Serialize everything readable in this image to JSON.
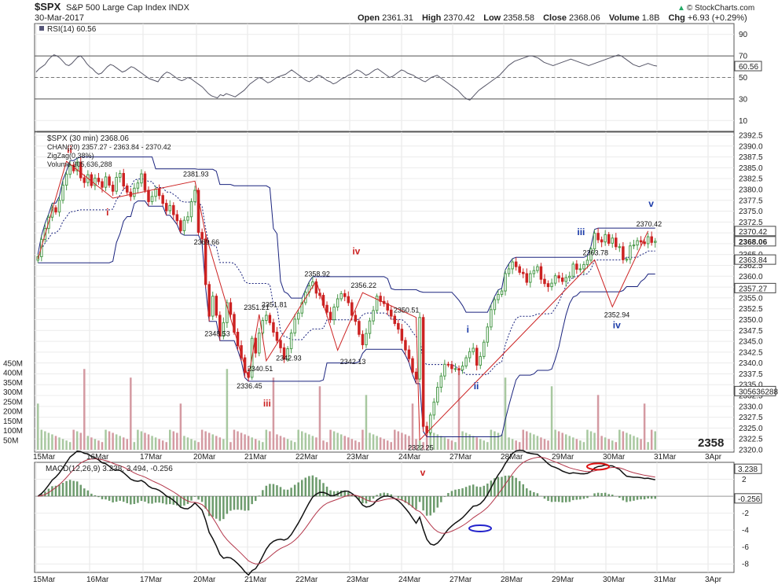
{
  "header": {
    "symbol": "$SPX",
    "name": "S&P 500 Large Cap Index",
    "exchange": "INDX",
    "date": "30-Mar-2017",
    "open_label": "Open",
    "open": "2361.31",
    "high_label": "High",
    "high": "2370.42",
    "low_label": "Low",
    "low": "2358.58",
    "close_label": "Close",
    "close": "2368.06",
    "volume_label": "Volume",
    "volume": "1.8B",
    "chg_label": "Chg",
    "chg": "+6.93 (+0.29%)",
    "credit": "© StockCharts.com",
    "credit_arrow": "▲"
  },
  "colors": {
    "up": "#4a9a4a",
    "down": "#cc2222",
    "zigzag": "#cc2222",
    "channel": "#1a237e",
    "wave_blue": "#1a3aa8",
    "wave_red": "#cc2222",
    "ma": "#b3364a",
    "macd_line": "#111111",
    "hist": "#3c7a3c",
    "vol_up": "#a8c8a0",
    "vol_down": "#d49aa2",
    "price_box": "#1f8f1f"
  },
  "chart_data": [
    {
      "type": "line",
      "panel": "rsi",
      "title": "RSI(14) 60.56",
      "value": 60.56,
      "ylim": [
        0,
        100
      ],
      "ticks": [
        "90",
        "70",
        "50",
        "30",
        "10"
      ],
      "levels": [
        70,
        50,
        30
      ],
      "values": [
        55,
        58,
        60,
        62,
        66,
        69,
        71,
        70,
        68,
        65,
        62,
        61,
        63,
        66,
        69,
        70,
        67,
        63,
        60,
        58,
        55,
        53,
        54,
        57,
        60,
        62,
        61,
        59,
        57,
        55,
        56,
        58,
        60,
        59,
        57,
        55,
        53,
        51,
        49,
        48,
        47,
        46,
        50,
        53,
        55,
        54,
        52,
        50,
        48,
        47,
        48,
        50,
        49,
        47,
        45,
        43,
        41,
        38,
        35,
        33,
        32,
        31,
        34,
        33,
        35,
        34,
        33,
        32,
        34,
        36,
        38,
        41,
        44,
        46,
        48,
        50,
        49,
        47,
        45,
        46,
        48,
        50,
        51,
        52,
        53,
        55,
        57,
        55,
        53,
        51,
        49,
        47,
        46,
        48,
        50,
        52,
        51,
        49,
        47,
        46,
        44,
        45,
        47,
        49,
        50,
        52,
        53,
        55,
        57,
        56,
        54,
        52,
        53,
        55,
        57,
        58,
        56,
        54,
        52,
        50,
        51,
        53,
        55,
        57,
        56,
        54,
        53,
        52,
        50,
        49,
        47,
        46,
        48,
        50,
        51,
        52,
        50,
        48,
        46,
        44,
        42,
        40,
        38,
        35,
        32,
        30,
        29,
        32,
        35,
        38,
        40,
        42,
        44,
        46,
        48,
        50,
        52,
        55,
        58,
        61,
        63,
        65,
        66,
        67,
        68,
        69,
        70,
        70,
        69,
        68,
        66,
        64,
        63,
        62,
        61,
        62,
        63,
        64,
        65,
        66,
        67,
        66,
        65,
        64,
        63,
        62,
        61,
        62,
        63,
        64,
        65,
        66,
        67,
        68,
        69,
        70,
        71,
        70,
        68,
        66,
        64,
        62,
        61,
        60,
        61,
        62,
        63,
        62,
        61,
        60.56
      ]
    },
    {
      "type": "candlestick",
      "panel": "price",
      "title": "$SPX (30 min) 2368.06",
      "legend": [
        "CHAN(20) 2357.27 - 2363.84 - 2370.42",
        "ZigZag(0.38%)",
        "Volume 305,636,288"
      ],
      "ylim": [
        2320,
        2392.5
      ],
      "ticks": [
        "2392.5",
        "2390.0",
        "2387.5",
        "2385.0",
        "2382.5",
        "2380.0",
        "2377.5",
        "2375.0",
        "2372.5",
        "2370.0",
        "2367.5",
        "2365.0",
        "2362.5",
        "2360.0",
        "2357.5",
        "2355.0",
        "2352.5",
        "2350.0",
        "2347.5",
        "2345.0",
        "2342.5",
        "2340.0",
        "2337.5",
        "2335.0",
        "2332.5",
        "2330.0",
        "2327.5",
        "2325.0",
        "2322.5",
        "2320.0"
      ],
      "price_tags": [
        "2370.42",
        "2368.06",
        "2363.84",
        "2357.27",
        "305636288"
      ],
      "last_price": "2358",
      "close": [
        2364.5,
        2368.5,
        2371.0,
        2373.6,
        2375.8,
        2374.8,
        2377.5,
        2381.0,
        2383.5,
        2385.6,
        2384.3,
        2386.3,
        2382.7,
        2381.6,
        2383.4,
        2380.9,
        2382.6,
        2381.8,
        2380.5,
        2382.9,
        2381.0,
        2379.6,
        2382.8,
        2383.7,
        2380.8,
        2379.4,
        2378.4,
        2380.3,
        2381.5,
        2383.6,
        2379.8,
        2377.2,
        2378.4,
        2380.1,
        2378.6,
        2376.8,
        2375.1,
        2376.3,
        2374.2,
        2372.8,
        2370.5,
        2372.9,
        2373.7,
        2377.2,
        2379.8,
        2370.1,
        2368.6,
        2358.1,
        2350.8,
        2355.4,
        2351.0,
        2346.2,
        2349.3,
        2353.9,
        2351.2,
        2347.1,
        2344.0,
        2341.2,
        2337.8,
        2336.7,
        2345.7,
        2342.3,
        2346.9,
        2349.8,
        2351.0,
        2349.3,
        2347.1,
        2345.2,
        2343.5,
        2340.9,
        2343.3,
        2346.9,
        2350.1,
        2351.5,
        2353.9,
        2356.3,
        2357.8,
        2358.7,
        2356.1,
        2355.6,
        2353.3,
        2351.7,
        2350.0,
        2352.9,
        2354.8,
        2356.0,
        2355.3,
        2353.9,
        2351.0,
        2349.6,
        2346.6,
        2344.2,
        2346.8,
        2349.7,
        2352.1,
        2355.4,
        2354.2,
        2353.7,
        2352.2,
        2350.8,
        2349.1,
        2347.8,
        2345.2,
        2343.0,
        2341.0,
        2337.9,
        2336.3,
        2350.5,
        2325.4,
        2323.9,
        2328.0,
        2331.0,
        2334.4,
        2337.0,
        2339.7,
        2339.6,
        2338.7,
        2338.7,
        2338.4,
        2339.3,
        2341.2,
        2342.6,
        2343.4,
        2339.5,
        2341.5,
        2344.8,
        2348.3,
        2352.3,
        2354.6,
        2355.8,
        2356.6,
        2360.6,
        2361.7,
        2363.3,
        2362.2,
        2360.9,
        2360.6,
        2358.6,
        2360.6,
        2361.3,
        2362.2,
        2359.3,
        2358.3,
        2357.6,
        2358.4,
        2360.1,
        2359.6,
        2358.8,
        2359.7,
        2360.0,
        2362.8,
        2361.6,
        2361.7,
        2362.7,
        2363.7,
        2366.3,
        2369.9,
        2368.4,
        2367.9,
        2369.6,
        2367.6,
        2368.8,
        2366.8,
        2366.8,
        2363.8,
        2363.9,
        2367.0,
        2367.2,
        2368.2,
        2367.9,
        2367.5,
        2369.1,
        2367.8,
        2368.06
      ],
      "annotations_numbers": [
        "2381.93",
        "2369.66",
        "2348.53",
        "2351.21",
        "2351.81",
        "2340.51",
        "2336.45",
        "2342.93",
        "2358.92",
        "2356.22",
        "2342.13",
        "2350.51",
        "2322.25",
        "2363.78",
        "2352.94",
        "2370.42"
      ],
      "wave_labels": [
        "ii",
        "i",
        "iii",
        "iv",
        "v",
        "i",
        "ii",
        "iii",
        "iv",
        "v"
      ]
    },
    {
      "type": "bar",
      "panel": "volume",
      "ticks": [
        "450M",
        "400M",
        "350M",
        "300M",
        "250M",
        "200M",
        "150M",
        "100M",
        "50M"
      ],
      "ylim": [
        0,
        470
      ]
    },
    {
      "type": "line",
      "panel": "macd",
      "title": "MACD(12,26,9) 3.238, 3.494, -0.256",
      "ylim": [
        -9,
        4
      ],
      "ticks": [
        "2",
        "0",
        "-2",
        "-4",
        "-6",
        "-8"
      ],
      "price_tags": [
        "3.238",
        "-0.256"
      ]
    }
  ],
  "x_axis": {
    "labels": [
      "15Mar",
      "16Mar",
      "17Mar",
      "20Mar",
      "21Mar",
      "22Mar",
      "23Mar",
      "24Mar",
      "27Mar",
      "28Mar",
      "29Mar",
      "30Mar",
      "31Mar",
      "3Apr"
    ]
  }
}
